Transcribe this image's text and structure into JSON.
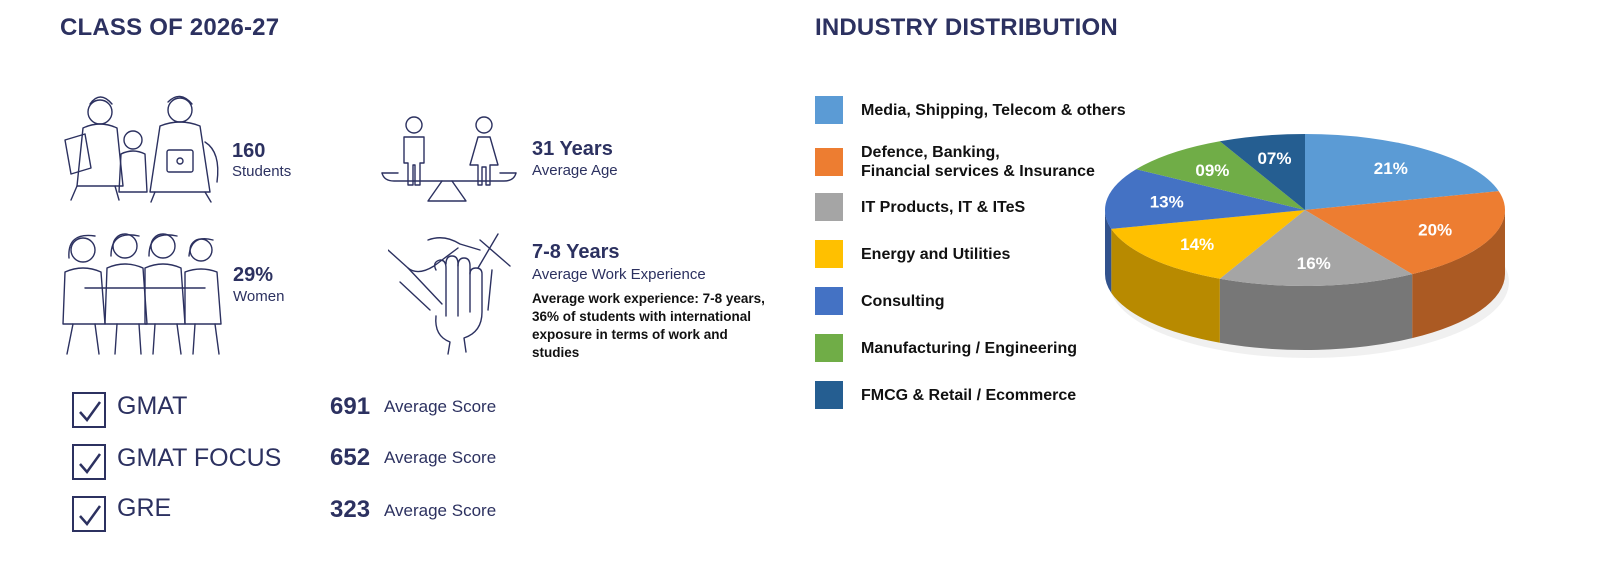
{
  "left_title": "CLASS OF 2026-27",
  "right_title": "INDUSTRY DISTRIBUTION",
  "stats": {
    "students": {
      "value": "160",
      "label": "Students",
      "icon": "students-group-icon"
    },
    "age": {
      "value": "31 Years",
      "label": "Average Age",
      "icon": "balance-scale-gender-icon"
    },
    "women": {
      "value": "29%",
      "label": "Women",
      "icon": "women-group-icon"
    },
    "experience": {
      "value": "7-8 Years",
      "label": "Average Work Experience",
      "note": "Average work experience: 7-8 years, 36% of students with international exposure in terms of work and studies",
      "icon": "hands-together-icon"
    }
  },
  "tests": [
    {
      "name": "GMAT",
      "score": "691",
      "score_label": "Average Score"
    },
    {
      "name": "GMAT FOCUS",
      "score": "652",
      "score_label": "Average Score"
    },
    {
      "name": "GRE",
      "score": "323",
      "score_label": "Average Score"
    }
  ],
  "chart_data": {
    "type": "pie",
    "title": "INDUSTRY DISTRIBUTION",
    "style": "3d",
    "legend_position": "left",
    "categories": [
      "Media, Shipping, Telecom & others",
      "Defence, Banking,\nFinancial services & Insurance",
      "IT Products, IT & ITeS",
      "Energy and Utilities",
      "Consulting",
      "Manufacturing / Engineering",
      "FMCG & Retail / Ecommerce"
    ],
    "values": [
      21,
      20,
      16,
      14,
      13,
      9,
      7
    ],
    "labels": [
      "21%",
      "20%",
      "16%",
      "14%",
      "13%",
      "09%",
      "07%"
    ],
    "colors": [
      "#5b9bd5",
      "#ed7d31",
      "#a5a5a5",
      "#ffc000",
      "#4472c4",
      "#70ad47",
      "#255e91"
    ]
  }
}
